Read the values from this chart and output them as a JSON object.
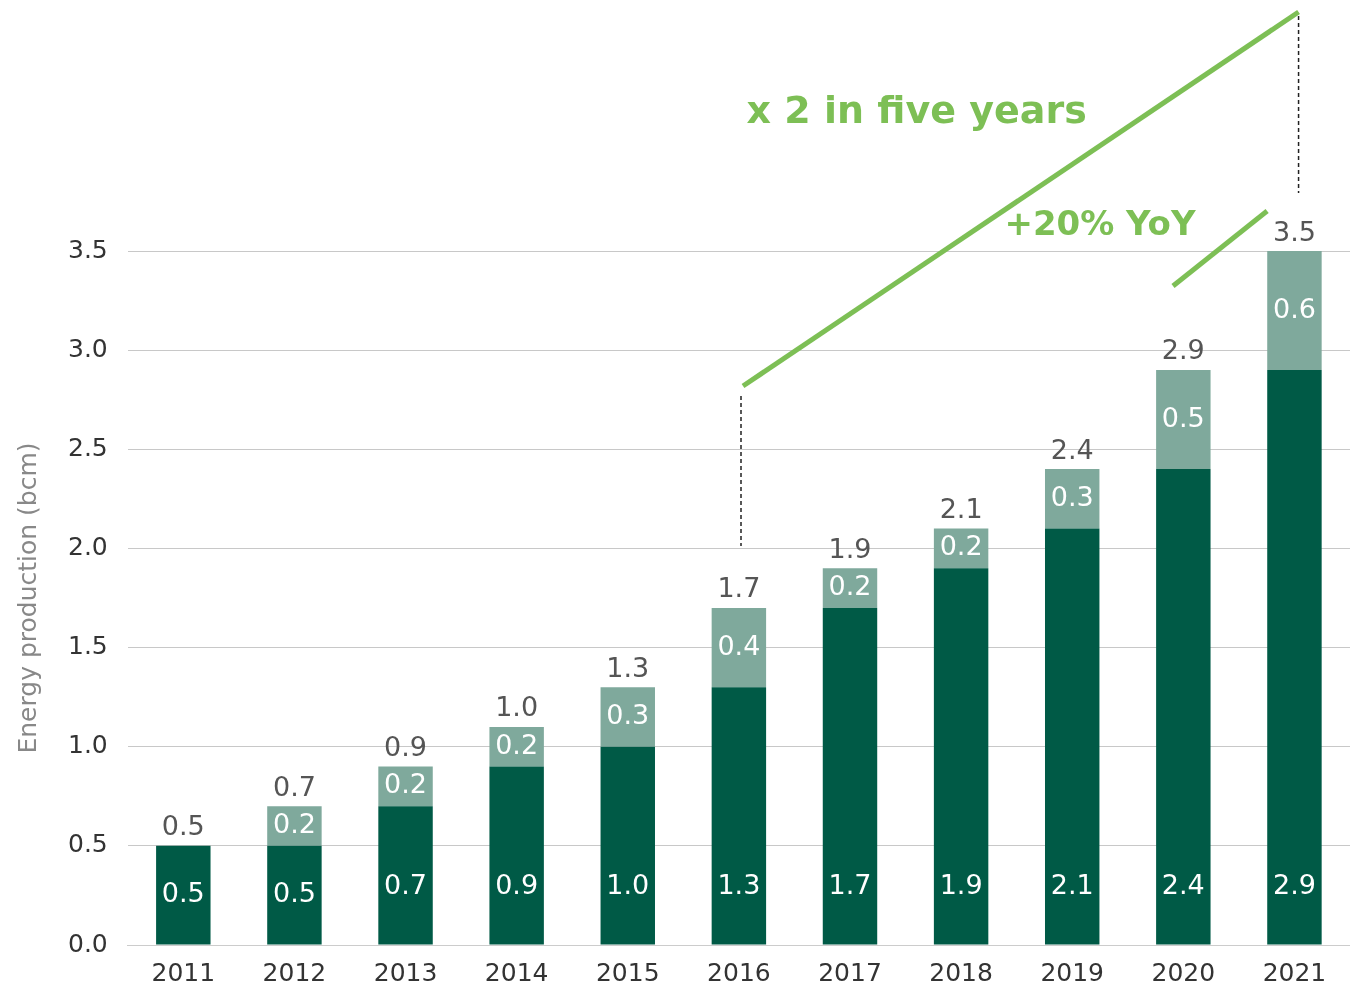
{
  "chart_data": {
    "type": "bar",
    "stacked": true,
    "categories": [
      "2011",
      "2012",
      "2013",
      "2014",
      "2015",
      "2016",
      "2017",
      "2018",
      "2019",
      "2020",
      "2021"
    ],
    "series": [
      {
        "color": "#005a46",
        "values": [
          0.5,
          0.5,
          0.7,
          0.9,
          1.0,
          1.3,
          1.7,
          1.9,
          2.1,
          2.4,
          2.9
        ],
        "value_labels": [
          "0.5",
          "0.5",
          "0.7",
          "0.9",
          "1.0",
          "1.3",
          "1.7",
          "1.9",
          "2.1",
          "2.4",
          "2.9"
        ]
      },
      {
        "color": "#7fa99c",
        "values": [
          null,
          0.2,
          0.2,
          0.2,
          0.3,
          0.4,
          0.2,
          0.2,
          0.3,
          0.5,
          0.6
        ],
        "value_labels": [
          null,
          "0.2",
          "0.2",
          "0.2",
          "0.3",
          "0.4",
          "0.2",
          "0.2",
          "0.3",
          "0.5",
          "0.6"
        ]
      }
    ],
    "totals": [
      "0.5",
      "0.7",
      "0.9",
      "1.0",
      "1.3",
      "1.7",
      "1.9",
      "2.1",
      "2.4",
      "2.9",
      "3.5"
    ],
    "ylabel": "Energy production (bcm)",
    "ylim": [
      0,
      3.5
    ],
    "yticks": [
      {
        "value": 0,
        "label": "0.0"
      },
      0.5,
      {
        "value": 1,
        "label": "1.0"
      },
      1.5,
      {
        "value": 2,
        "label": "2.0"
      },
      2.5,
      {
        "value": 3,
        "label": "3.0"
      },
      3.5
    ],
    "grid": "y",
    "annotations": [
      "x 2 in five years",
      "+20% YoY"
    ]
  }
}
